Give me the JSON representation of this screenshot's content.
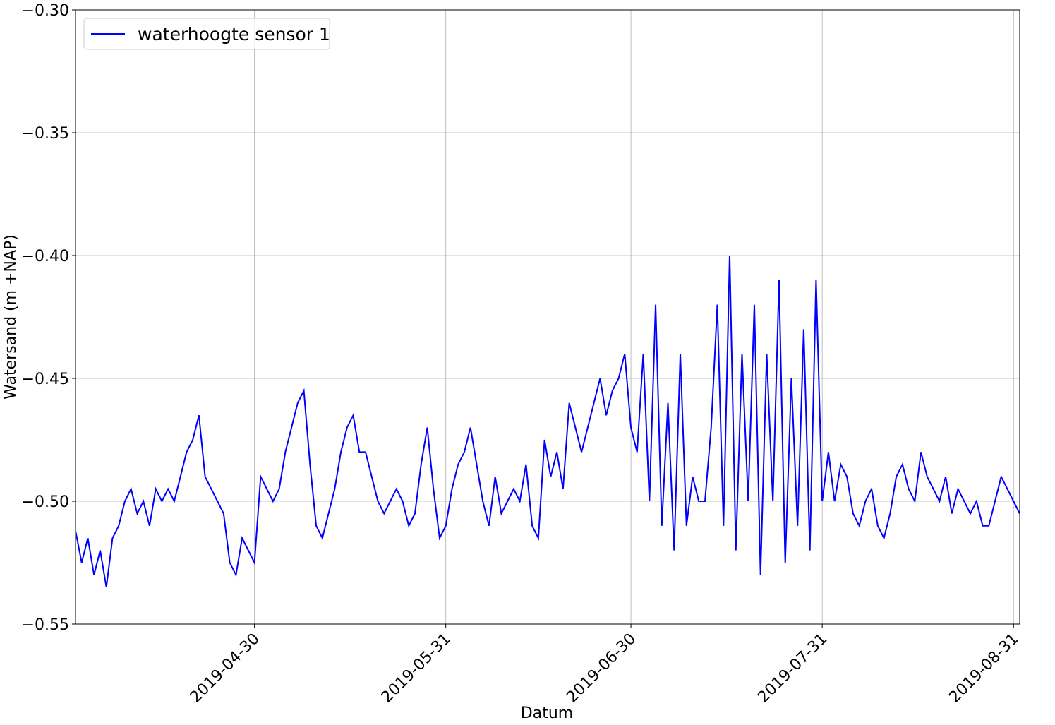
{
  "chart_data": {
    "type": "line",
    "xlabel": "Datum",
    "ylabel": "Watersand (m +NAP)",
    "x": [
      "2019-04-01",
      "2019-04-02",
      "2019-04-03",
      "2019-04-04",
      "2019-04-05",
      "2019-04-06",
      "2019-04-07",
      "2019-04-08",
      "2019-04-09",
      "2019-04-10",
      "2019-04-11",
      "2019-04-12",
      "2019-04-13",
      "2019-04-14",
      "2019-04-15",
      "2019-04-16",
      "2019-04-17",
      "2019-04-18",
      "2019-04-19",
      "2019-04-20",
      "2019-04-21",
      "2019-04-22",
      "2019-04-23",
      "2019-04-24",
      "2019-04-25",
      "2019-04-26",
      "2019-04-27",
      "2019-04-28",
      "2019-04-29",
      "2019-04-30",
      "2019-05-01",
      "2019-05-02",
      "2019-05-03",
      "2019-05-04",
      "2019-05-05",
      "2019-05-06",
      "2019-05-07",
      "2019-05-08",
      "2019-05-09",
      "2019-05-10",
      "2019-05-11",
      "2019-05-12",
      "2019-05-13",
      "2019-05-14",
      "2019-05-15",
      "2019-05-16",
      "2019-05-17",
      "2019-05-18",
      "2019-05-19",
      "2019-05-20",
      "2019-05-21",
      "2019-05-22",
      "2019-05-23",
      "2019-05-24",
      "2019-05-25",
      "2019-05-26",
      "2019-05-27",
      "2019-05-28",
      "2019-05-29",
      "2019-05-30",
      "2019-05-31",
      "2019-06-01",
      "2019-06-02",
      "2019-06-03",
      "2019-06-04",
      "2019-06-05",
      "2019-06-06",
      "2019-06-07",
      "2019-06-08",
      "2019-06-09",
      "2019-06-10",
      "2019-06-11",
      "2019-06-12",
      "2019-06-13",
      "2019-06-14",
      "2019-06-15",
      "2019-06-16",
      "2019-06-17",
      "2019-06-18",
      "2019-06-19",
      "2019-06-20",
      "2019-06-21",
      "2019-06-22",
      "2019-06-23",
      "2019-06-24",
      "2019-06-25",
      "2019-06-26",
      "2019-06-27",
      "2019-06-28",
      "2019-06-29",
      "2019-06-30",
      "2019-07-01",
      "2019-07-02",
      "2019-07-03",
      "2019-07-04",
      "2019-07-05",
      "2019-07-06",
      "2019-07-07",
      "2019-07-08",
      "2019-07-09",
      "2019-07-10",
      "2019-07-11",
      "2019-07-12",
      "2019-07-13",
      "2019-07-14",
      "2019-07-15",
      "2019-07-16",
      "2019-07-17",
      "2019-07-18",
      "2019-07-19",
      "2019-07-20",
      "2019-07-21",
      "2019-07-22",
      "2019-07-23",
      "2019-07-24",
      "2019-07-25",
      "2019-07-26",
      "2019-07-27",
      "2019-07-28",
      "2019-07-29",
      "2019-07-30",
      "2019-07-31",
      "2019-08-01",
      "2019-08-02",
      "2019-08-03",
      "2019-08-04",
      "2019-08-05",
      "2019-08-06",
      "2019-08-07",
      "2019-08-08",
      "2019-08-09",
      "2019-08-10",
      "2019-08-11",
      "2019-08-12",
      "2019-08-13",
      "2019-08-14",
      "2019-08-15",
      "2019-08-16",
      "2019-08-17",
      "2019-08-18",
      "2019-08-19",
      "2019-08-20",
      "2019-08-21",
      "2019-08-22",
      "2019-08-23",
      "2019-08-24",
      "2019-08-25",
      "2019-08-26",
      "2019-08-27",
      "2019-08-28",
      "2019-08-29",
      "2019-08-30",
      "2019-08-31",
      "2019-09-01"
    ],
    "series": [
      {
        "name": "waterhoogte sensor 1",
        "color": "#0000ff",
        "values": [
          -0.512,
          -0.525,
          -0.515,
          -0.53,
          -0.52,
          -0.535,
          -0.515,
          -0.51,
          -0.5,
          -0.495,
          -0.505,
          -0.5,
          -0.51,
          -0.495,
          -0.5,
          -0.495,
          -0.5,
          -0.49,
          -0.48,
          -0.475,
          -0.465,
          -0.49,
          -0.495,
          -0.5,
          -0.505,
          -0.525,
          -0.53,
          -0.515,
          -0.52,
          -0.525,
          -0.49,
          -0.495,
          -0.5,
          -0.495,
          -0.48,
          -0.47,
          -0.46,
          -0.455,
          -0.485,
          -0.51,
          -0.515,
          -0.505,
          -0.495,
          -0.48,
          -0.47,
          -0.465,
          -0.48,
          -0.48,
          -0.49,
          -0.5,
          -0.505,
          -0.5,
          -0.495,
          -0.5,
          -0.51,
          -0.505,
          -0.485,
          -0.47,
          -0.495,
          -0.515,
          -0.51,
          -0.495,
          -0.485,
          -0.48,
          -0.47,
          -0.485,
          -0.5,
          -0.51,
          -0.49,
          -0.505,
          -0.5,
          -0.495,
          -0.5,
          -0.485,
          -0.51,
          -0.515,
          -0.475,
          -0.49,
          -0.48,
          -0.495,
          -0.46,
          -0.47,
          -0.48,
          -0.47,
          -0.46,
          -0.45,
          -0.465,
          -0.455,
          -0.45,
          -0.44,
          -0.47,
          -0.48,
          -0.44,
          -0.5,
          -0.42,
          -0.51,
          -0.46,
          -0.52,
          -0.44,
          -0.51,
          -0.49,
          -0.5,
          -0.5,
          -0.47,
          -0.42,
          -0.51,
          -0.4,
          -0.52,
          -0.44,
          -0.5,
          -0.42,
          -0.53,
          -0.44,
          -0.5,
          -0.41,
          -0.525,
          -0.45,
          -0.51,
          -0.43,
          -0.52,
          -0.41,
          -0.5,
          -0.48,
          -0.5,
          -0.485,
          -0.49,
          -0.505,
          -0.51,
          -0.5,
          -0.495,
          -0.51,
          -0.515,
          -0.505,
          -0.49,
          -0.485,
          -0.495,
          -0.5,
          -0.48,
          -0.49,
          -0.495,
          -0.5,
          -0.49,
          -0.505,
          -0.495,
          -0.5,
          -0.505,
          -0.5,
          -0.51,
          -0.51,
          -0.5,
          -0.49,
          -0.495,
          -0.5,
          -0.505
        ]
      }
    ],
    "xlim": [
      "2019-04-01",
      "2019-09-01"
    ],
    "xticks": [
      "2019-04-30",
      "2019-05-31",
      "2019-06-30",
      "2019-07-31",
      "2019-08-31"
    ],
    "ylim": [
      -0.55,
      -0.3
    ],
    "yticks": [
      {
        "value": -0.55,
        "label": "−0.55"
      },
      {
        "value": -0.5,
        "label": "−0.50"
      },
      {
        "value": -0.45,
        "label": "−0.45"
      },
      {
        "value": -0.4,
        "label": "−0.40"
      },
      {
        "value": -0.35,
        "label": "−0.35"
      },
      {
        "value": -0.3,
        "label": "−0.30"
      }
    ],
    "grid": true,
    "legend": "upper left"
  }
}
